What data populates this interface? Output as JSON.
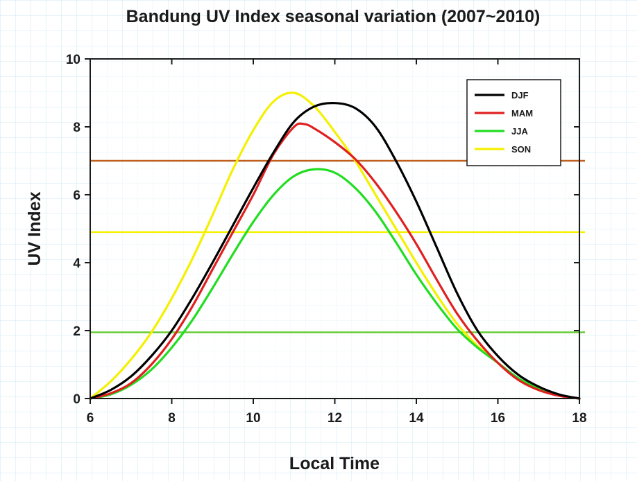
{
  "chart_data": {
    "type": "line",
    "title": "Bandung UV Index seasonal variation (2007~2010)",
    "xlabel": "Local Time",
    "ylabel": "UV Index",
    "xlim": [
      6,
      18
    ],
    "ylim": [
      0,
      10
    ],
    "xticks": [
      6,
      8,
      10,
      12,
      14,
      16,
      18
    ],
    "yticks": [
      0,
      2,
      4,
      6,
      8,
      10
    ],
    "legend_position": "top-right",
    "series": [
      {
        "name": "DJF",
        "color": "#000000",
        "x": [
          6,
          6.5,
          7,
          7.5,
          8,
          8.5,
          9,
          9.5,
          10,
          10.5,
          11,
          11.5,
          12,
          12.5,
          13,
          13.5,
          14,
          14.5,
          15,
          15.5,
          16,
          16.5,
          17,
          17.5,
          18
        ],
        "y": [
          0,
          0.25,
          0.65,
          1.25,
          2.0,
          2.95,
          4.0,
          5.1,
          6.2,
          7.25,
          8.15,
          8.6,
          8.7,
          8.55,
          8.0,
          7.0,
          5.8,
          4.45,
          3.1,
          2.0,
          1.25,
          0.7,
          0.35,
          0.12,
          0
        ]
      },
      {
        "name": "MAM",
        "color": "#e02020",
        "x": [
          6,
          6.5,
          7,
          7.5,
          8,
          8.5,
          9,
          9.5,
          10,
          10.5,
          11,
          11.25,
          11.5,
          12,
          12.5,
          13,
          13.5,
          14,
          14.5,
          15,
          15.5,
          16,
          16.5,
          17,
          17.5,
          18
        ],
        "y": [
          0,
          0.15,
          0.45,
          1.0,
          1.75,
          2.7,
          3.8,
          4.9,
          6.0,
          7.2,
          8.0,
          8.08,
          7.95,
          7.55,
          7.05,
          6.35,
          5.5,
          4.55,
          3.5,
          2.5,
          1.7,
          1.05,
          0.55,
          0.25,
          0.08,
          0
        ]
      },
      {
        "name": "JJA",
        "color": "#22dd22",
        "x": [
          6,
          6.5,
          7,
          7.5,
          8,
          8.5,
          9,
          9.5,
          10,
          10.5,
          11,
          11.5,
          12,
          12.5,
          13,
          13.5,
          14,
          14.5,
          15,
          15.5,
          16,
          16.5,
          17,
          17.5,
          18
        ],
        "y": [
          0,
          0.12,
          0.4,
          0.85,
          1.5,
          2.3,
          3.25,
          4.25,
          5.2,
          6.0,
          6.55,
          6.75,
          6.65,
          6.2,
          5.5,
          4.6,
          3.65,
          2.8,
          2.05,
          1.5,
          1.05,
          0.6,
          0.3,
          0.1,
          0
        ]
      },
      {
        "name": "SON",
        "color": "#f5f000",
        "x": [
          6,
          6.5,
          7,
          7.5,
          8,
          8.5,
          9,
          9.5,
          10,
          10.5,
          11,
          11.5,
          12,
          12.5,
          13,
          13.5,
          14,
          14.5,
          15,
          15.5,
          16,
          16.5,
          17,
          17.5,
          18
        ],
        "y": [
          0,
          0.5,
          1.15,
          1.95,
          2.95,
          4.1,
          5.4,
          6.75,
          7.9,
          8.75,
          9.0,
          8.6,
          7.85,
          7.0,
          6.0,
          5.0,
          4.0,
          3.05,
          2.2,
          1.55,
          1.05,
          0.55,
          0.25,
          0.1,
          0
        ]
      }
    ],
    "reference_lines": [
      {
        "y": 7.0,
        "color": "#c0601c"
      },
      {
        "y": 4.9,
        "color": "#f5f000"
      },
      {
        "y": 1.95,
        "color": "#66cc33"
      }
    ]
  }
}
